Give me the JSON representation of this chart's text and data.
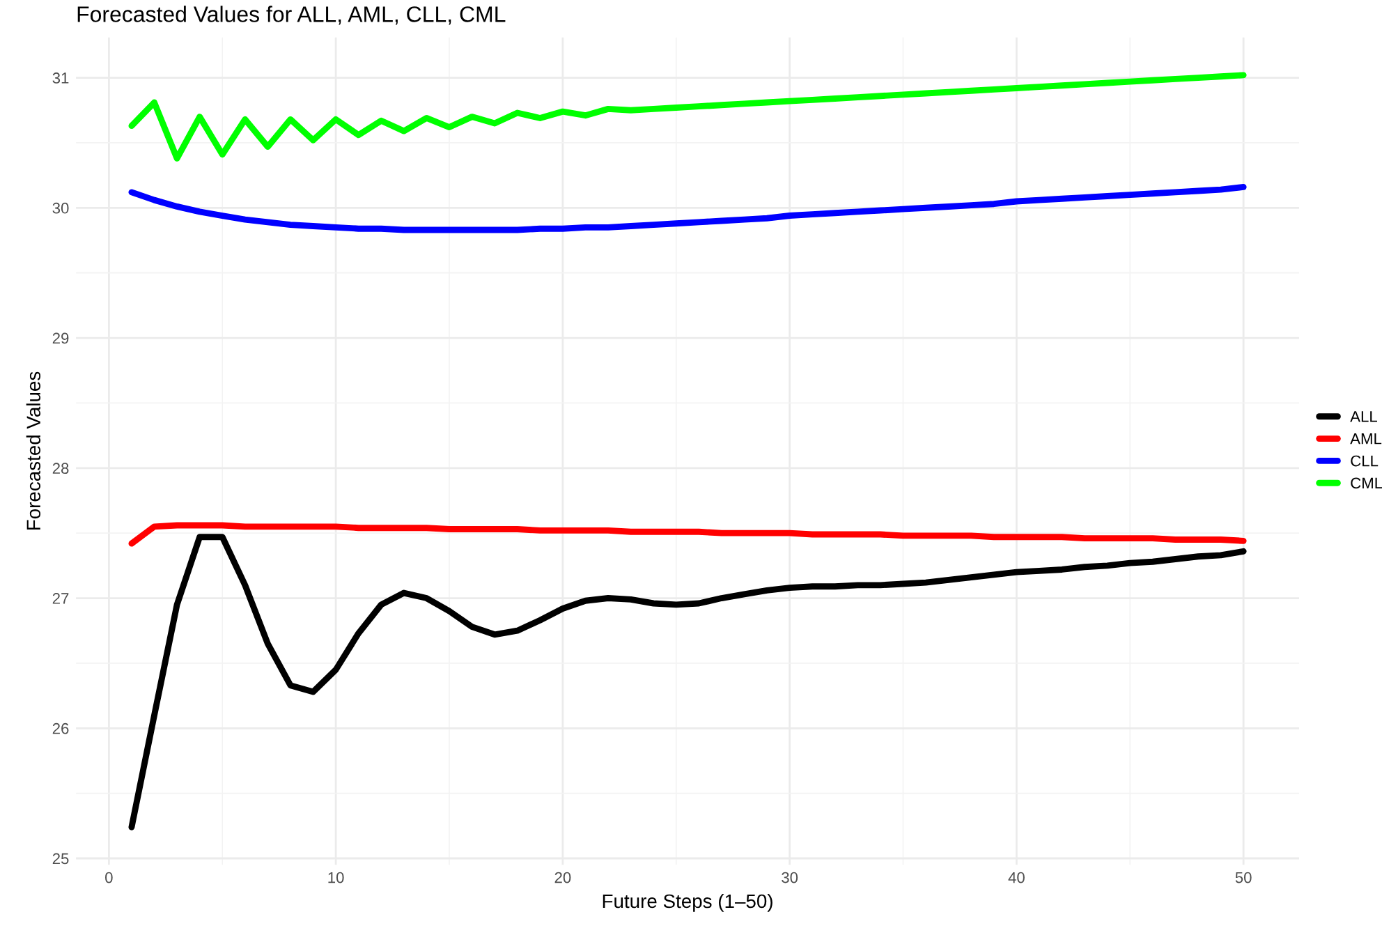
{
  "chart_data": {
    "type": "line",
    "title": "Forecasted Values for ALL, AML, CLL, CML",
    "xlabel": "Future Steps (1–50)",
    "ylabel": "Forecasted Values",
    "x": [
      1,
      2,
      3,
      4,
      5,
      6,
      7,
      8,
      9,
      10,
      11,
      12,
      13,
      14,
      15,
      16,
      17,
      18,
      19,
      20,
      21,
      22,
      23,
      24,
      25,
      26,
      27,
      28,
      29,
      30,
      31,
      32,
      33,
      34,
      35,
      36,
      37,
      38,
      39,
      40,
      41,
      42,
      43,
      44,
      45,
      46,
      47,
      48,
      49,
      50
    ],
    "series": [
      {
        "name": "ALL",
        "color": "#000000",
        "values": [
          25.24,
          26.1,
          26.95,
          27.47,
          27.47,
          27.1,
          26.65,
          26.33,
          26.28,
          26.45,
          26.73,
          26.95,
          27.04,
          27.0,
          26.9,
          26.78,
          26.72,
          26.75,
          26.83,
          26.92,
          26.98,
          27.0,
          26.99,
          26.96,
          26.95,
          26.96,
          27.0,
          27.03,
          27.06,
          27.08,
          27.09,
          27.09,
          27.1,
          27.1,
          27.11,
          27.12,
          27.14,
          27.16,
          27.18,
          27.2,
          27.21,
          27.22,
          27.24,
          27.25,
          27.27,
          27.28,
          27.3,
          27.32,
          27.33,
          27.36
        ]
      },
      {
        "name": "AML",
        "color": "#ff0000",
        "values": [
          27.42,
          27.55,
          27.56,
          27.56,
          27.56,
          27.55,
          27.55,
          27.55,
          27.55,
          27.55,
          27.54,
          27.54,
          27.54,
          27.54,
          27.53,
          27.53,
          27.53,
          27.53,
          27.52,
          27.52,
          27.52,
          27.52,
          27.51,
          27.51,
          27.51,
          27.51,
          27.5,
          27.5,
          27.5,
          27.5,
          27.49,
          27.49,
          27.49,
          27.49,
          27.48,
          27.48,
          27.48,
          27.48,
          27.47,
          27.47,
          27.47,
          27.47,
          27.46,
          27.46,
          27.46,
          27.46,
          27.45,
          27.45,
          27.45,
          27.44
        ]
      },
      {
        "name": "CLL",
        "color": "#0000ff",
        "values": [
          30.12,
          30.06,
          30.01,
          29.97,
          29.94,
          29.91,
          29.89,
          29.87,
          29.86,
          29.85,
          29.84,
          29.84,
          29.83,
          29.83,
          29.83,
          29.83,
          29.83,
          29.83,
          29.84,
          29.84,
          29.85,
          29.85,
          29.86,
          29.87,
          29.88,
          29.89,
          29.9,
          29.91,
          29.92,
          29.94,
          29.95,
          29.96,
          29.97,
          29.98,
          29.99,
          30.0,
          30.01,
          30.02,
          30.03,
          30.05,
          30.06,
          30.07,
          30.08,
          30.09,
          30.1,
          30.11,
          30.12,
          30.13,
          30.14,
          30.16
        ]
      },
      {
        "name": "CML",
        "color": "#00ff00",
        "values": [
          30.63,
          30.81,
          30.38,
          30.7,
          30.41,
          30.68,
          30.47,
          30.68,
          30.52,
          30.68,
          30.56,
          30.67,
          30.59,
          30.69,
          30.62,
          30.7,
          30.65,
          30.73,
          30.69,
          30.74,
          30.71,
          30.76,
          30.75,
          30.76,
          30.77,
          30.78,
          30.79,
          30.8,
          30.81,
          30.82,
          30.83,
          30.84,
          30.85,
          30.86,
          30.87,
          30.88,
          30.89,
          30.9,
          30.91,
          30.92,
          30.93,
          30.94,
          30.95,
          30.96,
          30.97,
          30.98,
          30.99,
          31.0,
          31.01,
          31.02
        ]
      }
    ],
    "xlim": [
      -1.45,
      52.45
    ],
    "ylim": [
      24.95,
      31.31
    ],
    "xticks": [
      0,
      10,
      20,
      30,
      40,
      50
    ],
    "yticks": [
      25,
      26,
      27,
      28,
      29,
      30,
      31
    ],
    "grid": true,
    "legend": "right",
    "line_style": "solid",
    "marker": "none"
  }
}
